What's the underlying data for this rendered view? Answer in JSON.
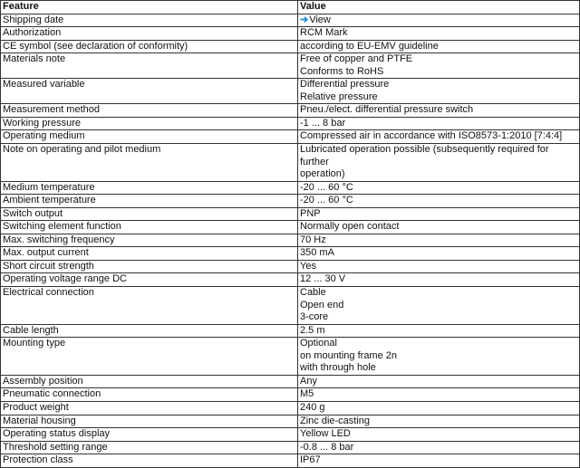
{
  "header": {
    "feature": "Feature",
    "value": "Value"
  },
  "rows": [
    {
      "feature": "Shipping date",
      "link": {
        "icon": "arrow-right-icon",
        "label": "View",
        "color": "#1a8ad0"
      }
    },
    {
      "feature": "Authorization",
      "value": [
        "RCM Mark"
      ]
    },
    {
      "feature": "CE symbol (see declaration of conformity)",
      "value": [
        "according to EU-EMV guideline"
      ]
    },
    {
      "feature": "Materials note",
      "value": [
        "Free of copper and PTFE",
        "Conforms to RoHS"
      ]
    },
    {
      "feature": "Measured variable",
      "value": [
        "Differential pressure",
        "Relative pressure"
      ]
    },
    {
      "feature": "Measurement method",
      "value": [
        "Pneu./elect. differential pressure switch"
      ]
    },
    {
      "feature": "Working pressure",
      "value": [
        "-1 ... 8 bar"
      ]
    },
    {
      "feature": "Operating medium",
      "value": [
        "Compressed air in accordance with ISO8573-1:2010 [7:4:4]"
      ]
    },
    {
      "feature": "Note on operating and pilot medium",
      "value": [
        "Lubricated operation possible (subsequently required for further",
        "operation)"
      ]
    },
    {
      "feature": "Medium temperature",
      "value": [
        "-20 ... 60 °C"
      ]
    },
    {
      "feature": "Ambient temperature",
      "value": [
        "-20 ... 60 °C"
      ]
    },
    {
      "feature": "Switch output",
      "value": [
        "PNP"
      ]
    },
    {
      "feature": "Switching element function",
      "value": [
        "Normally open contact"
      ]
    },
    {
      "feature": "Max. switching frequency",
      "value": [
        "70 Hz"
      ]
    },
    {
      "feature": "Max. output current",
      "value": [
        "350 mA"
      ]
    },
    {
      "feature": "Short circuit strength",
      "value": [
        "Yes"
      ]
    },
    {
      "feature": "Operating voltage range DC",
      "value": [
        "12 ... 30 V"
      ]
    },
    {
      "feature": "Electrical connection",
      "value": [
        "Cable",
        "Open end",
        "3-core"
      ]
    },
    {
      "feature": "Cable length",
      "value": [
        "2.5 m"
      ]
    },
    {
      "feature": "Mounting type",
      "value": [
        "Optional",
        "on mounting frame 2n",
        "with through hole"
      ]
    },
    {
      "feature": "Assembly position",
      "value": [
        "Any"
      ]
    },
    {
      "feature": "Pneumatic connection",
      "value": [
        "M5"
      ]
    },
    {
      "feature": "Product weight",
      "value": [
        "240 g"
      ]
    },
    {
      "feature": "Material housing",
      "value": [
        "Zinc die-casting"
      ]
    },
    {
      "feature": "Operating status display",
      "value": [
        "Yellow LED"
      ]
    },
    {
      "feature": "Threshold setting range",
      "value": [
        "-0.8 ... 8 bar"
      ]
    },
    {
      "feature": "Protection class",
      "value": [
        "IP67"
      ]
    }
  ]
}
